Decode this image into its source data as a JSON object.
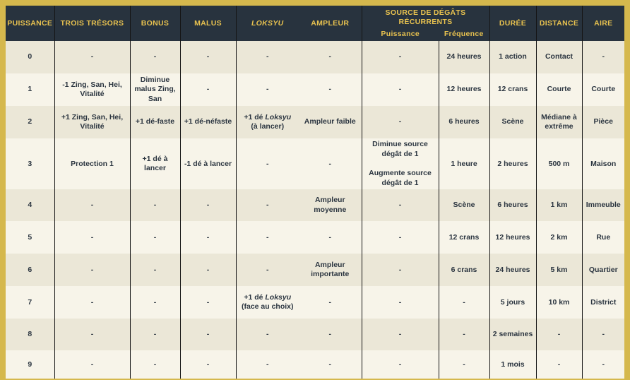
{
  "colors": {
    "frame_gold": "#d5b84d",
    "header_bg": "#28333e",
    "header_text": "#e8c24f",
    "row_stripe_dark": "#ebe7d7",
    "row_stripe_light": "#f7f4e9",
    "body_text": "#2b3540",
    "grid_line": "#151515"
  },
  "table": {
    "headers": {
      "puissance": "PUISSANCE",
      "trois_tresors": "TROIS TRÉSORS",
      "bonus": "BONUS",
      "malus": "MALUS",
      "loksyu": "LOKSYU",
      "ampleur": "AMPLEUR",
      "source_group": "SOURCE DE DÉGÂTS\nRÉCURRENTS",
      "source_sub_puissance": "Puissance",
      "source_sub_frequence": "Fréquence",
      "duree": "DURÉE",
      "distance": "DISTANCE",
      "aire": "AIRE"
    },
    "rows": [
      [
        "0",
        "-",
        "-",
        "-",
        "-",
        "-",
        "-",
        "24 heures",
        "1 action",
        "Contact",
        "-"
      ],
      [
        "1",
        "-1 Zing, San, Hei, Vitalité",
        "Diminue malus Zing, San",
        "-",
        "-",
        "-",
        "-",
        "12 heures",
        "12 crans",
        "Courte",
        "Courte"
      ],
      [
        "2",
        "+1 Zing, San, Hei, Vitalité",
        "+1 dé-faste",
        "+1 dé-néfaste",
        "+1 dé *Loksyu*\n(à lancer)",
        "Ampleur faible",
        "-",
        "6 heures",
        "Scène",
        "Médiane à extrême",
        "Pièce"
      ],
      [
        "3",
        "Protection 1",
        "+1 dé à lancer",
        "-1 dé à lancer",
        "-",
        "-",
        "Diminue source dégât de 1\n\nAugmente source dégât de 1",
        "1 heure",
        "2 heures",
        "500 m",
        "Maison"
      ],
      [
        "4",
        "-",
        "-",
        "-",
        "-",
        "Ampleur moyenne",
        "-",
        "Scène",
        "6 heures",
        "1 km",
        "Immeuble"
      ],
      [
        "5",
        "-",
        "-",
        "-",
        "-",
        "-",
        "-",
        "12 crans",
        "12 heures",
        "2 km",
        "Rue"
      ],
      [
        "6",
        "-",
        "-",
        "-",
        "-",
        "Ampleur importante",
        "-",
        "6 crans",
        "24 heures",
        "5 km",
        "Quartier"
      ],
      [
        "7",
        "-",
        "-",
        "-",
        "+1 dé *Loksyu*\n(face au choix)",
        "-",
        "-",
        "-",
        "5 jours",
        "10 km",
        "District"
      ],
      [
        "8",
        "-",
        "-",
        "-",
        "-",
        "-",
        "-",
        "-",
        "2 semaines",
        "-",
        "-"
      ],
      [
        "9",
        "-",
        "-",
        "-",
        "-",
        "-",
        "-",
        "-",
        "1 mois",
        "-",
        "-"
      ]
    ]
  }
}
